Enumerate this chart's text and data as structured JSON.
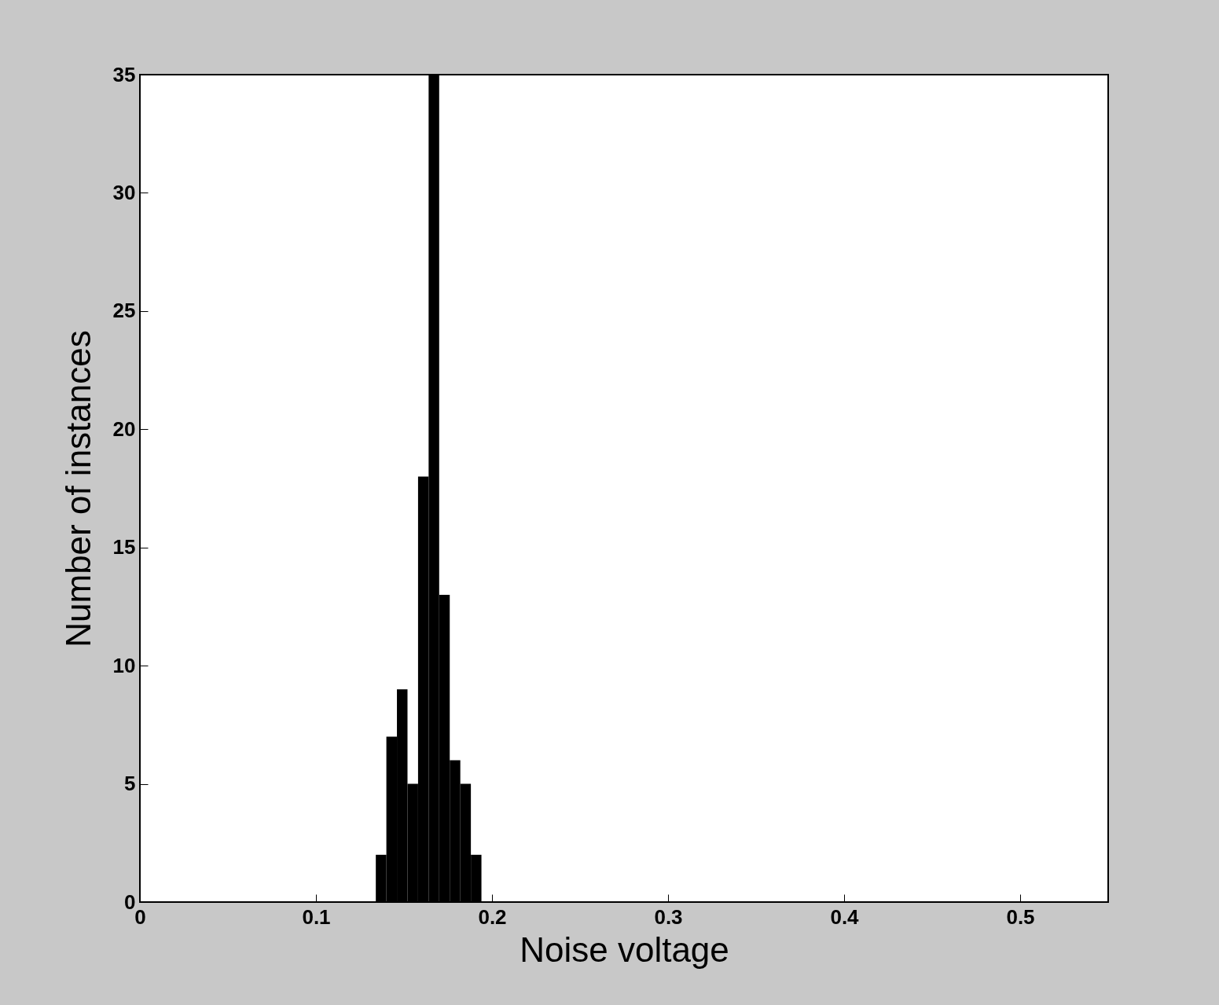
{
  "chart_data": {
    "type": "histogram",
    "xlabel": "Noise voltage",
    "ylabel": "Number of instances",
    "bins": [
      0.134,
      0.14,
      0.146,
      0.152,
      0.158,
      0.164,
      0.17,
      0.176,
      0.182,
      0.188,
      0.194
    ],
    "values": [
      2,
      7,
      9,
      5,
      18,
      35,
      13,
      6,
      5,
      2
    ],
    "color": "#000000",
    "xlim": [
      0,
      0.55
    ],
    "xticks": [
      0,
      0.1,
      0.2,
      0.3,
      0.4,
      0.5
    ],
    "ylim": [
      0,
      35
    ],
    "yticks": [
      0,
      5,
      10,
      15,
      20,
      25,
      30,
      35
    ],
    "grid": false
  }
}
